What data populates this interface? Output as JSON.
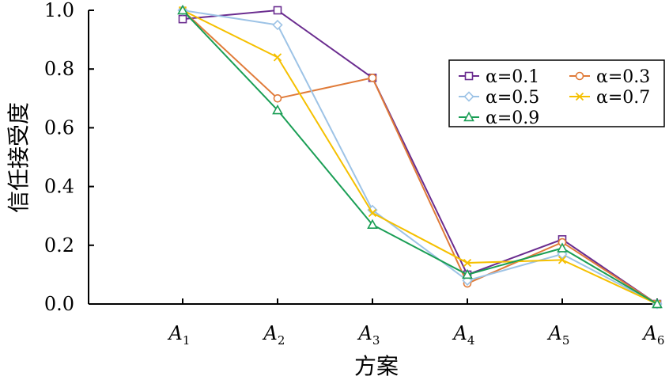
{
  "chart_data": {
    "type": "line",
    "xlabel": "方案",
    "ylabel": "信任接受度",
    "ylim": [
      0,
      1.0
    ],
    "yticks": [
      "0.0",
      "0.2",
      "0.4",
      "0.6",
      "0.8",
      "1.0"
    ],
    "categories": [
      {
        "main": "A",
        "sub": "1"
      },
      {
        "main": "A",
        "sub": "2"
      },
      {
        "main": "A",
        "sub": "3"
      },
      {
        "main": "A",
        "sub": "4"
      },
      {
        "main": "A",
        "sub": "5"
      },
      {
        "main": "A",
        "sub": "6"
      }
    ],
    "series": [
      {
        "name": "α=0.1",
        "color": "#6a2c8f",
        "marker": "square",
        "values": [
          0.97,
          1.0,
          0.77,
          0.1,
          0.22,
          0.0
        ]
      },
      {
        "name": "α=0.3",
        "color": "#e07b39",
        "marker": "circle",
        "values": [
          1.0,
          0.7,
          0.77,
          0.07,
          0.21,
          0.0
        ]
      },
      {
        "name": "α=0.5",
        "color": "#9dc3e6",
        "marker": "diamond",
        "values": [
          1.0,
          0.95,
          0.32,
          0.08,
          0.17,
          0.0
        ]
      },
      {
        "name": "α=0.7",
        "color": "#f5c000",
        "marker": "x",
        "values": [
          1.0,
          0.84,
          0.31,
          0.14,
          0.15,
          0.0
        ]
      },
      {
        "name": "α=0.9",
        "color": "#1a9e55",
        "marker": "triangle",
        "values": [
          1.0,
          0.66,
          0.27,
          0.1,
          0.19,
          0.0
        ]
      }
    ],
    "legend": {
      "position": "top-right",
      "columns": 2
    },
    "grid": false
  }
}
